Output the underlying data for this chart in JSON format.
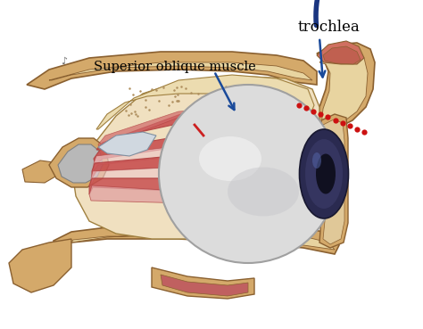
{
  "bg_color": "#ffffff",
  "label_trochlea": "trochlea",
  "label_muscle": "Superior oblique muscle",
  "dashed_arc_color": "#1a3580",
  "dotted_red_color": "#cc1111",
  "orbit_bone": "#d4a96a",
  "orbit_bone_dark": "#c49050",
  "orbit_inner": "#e8d4a0",
  "muscle_dark_red": "#b04040",
  "muscle_red": "#c85050",
  "muscle_pink": "#e0a0a0",
  "muscle_light_pink": "#eec8c8",
  "sclera_white": "#e8e8e8",
  "sclera_highlight": "#f8f8f8",
  "iris_dark": "#2a2a50",
  "iris_mid": "#3a3a60",
  "orbital_fat_tan": "#d4c090",
  "brown_dark": "#8a6030",
  "tenon_gray": "#b8b8b8",
  "trochlea_pink": "#d07060"
}
